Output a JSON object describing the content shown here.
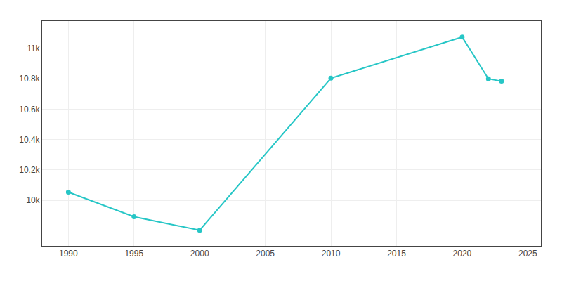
{
  "chart_data": {
    "type": "line",
    "x": [
      1990,
      1995,
      2000,
      2010,
      2020,
      2022,
      2023
    ],
    "values": [
      10054,
      9892,
      9803,
      10804,
      11075,
      10800,
      10784
    ],
    "color": "#26c6c6",
    "marker": "circle",
    "xlim": [
      1988,
      2026
    ],
    "xticks": [
      1990,
      1995,
      2000,
      2005,
      2010,
      2015,
      2020,
      2025
    ],
    "ylim": [
      9700,
      11180
    ],
    "yticks": [
      {
        "value": 10000,
        "label": "10k"
      },
      {
        "value": 10200,
        "label": "10.2k"
      },
      {
        "value": 10400,
        "label": "10.4k"
      },
      {
        "value": 10600,
        "label": "10.6k"
      },
      {
        "value": 10800,
        "label": "10.8k"
      },
      {
        "value": 11000,
        "label": "11k"
      }
    ],
    "grid": true
  }
}
